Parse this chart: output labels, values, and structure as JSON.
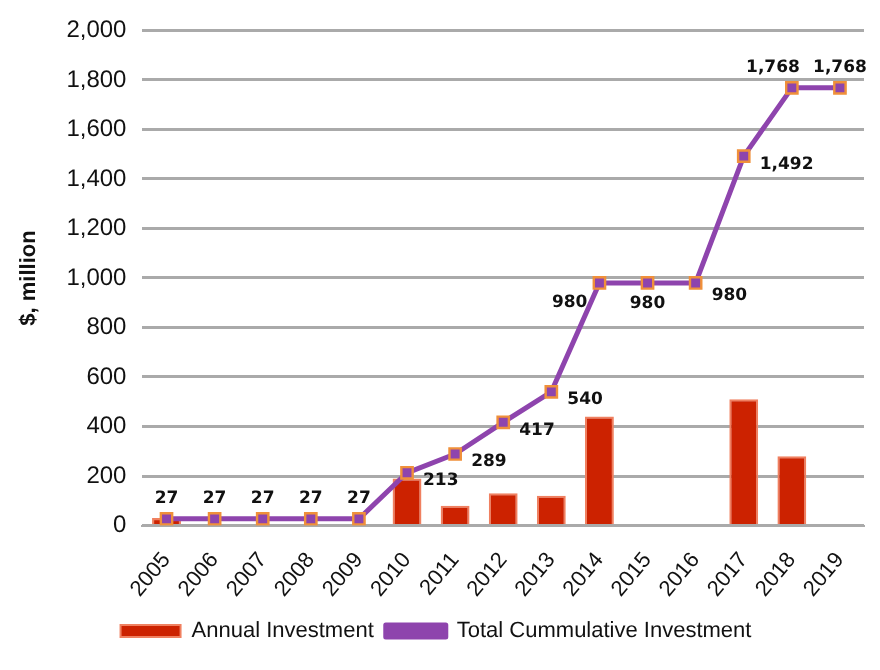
{
  "chart_data": {
    "type": "bar",
    "ylabel": "$, million",
    "categories": [
      "2005",
      "2006",
      "2007",
      "2008",
      "2009",
      "2010",
      "2011",
      "2012",
      "2013",
      "2014",
      "2015",
      "2016",
      "2017",
      "2018",
      "2019"
    ],
    "series": [
      {
        "name": "Annual Investment",
        "color": "#cc2200",
        "values": [
          30,
          0,
          0,
          0,
          0,
          190,
          80,
          130,
          120,
          440,
          0,
          0,
          510,
          280,
          0
        ]
      },
      {
        "name": "Total Cummulative Investment",
        "type": "line",
        "color": "#8e44ad",
        "marker": "square",
        "values": [
          27,
          27,
          27,
          27,
          27,
          213,
          289,
          417,
          540,
          980,
          980,
          980,
          1492,
          1768,
          1768
        ],
        "value_labels": [
          "27",
          "27",
          "27",
          "27",
          "27",
          "213",
          "289",
          "417",
          "540",
          "980",
          "980",
          "980",
          "1,492",
          "1,768",
          "1,768"
        ]
      }
    ],
    "ylim": [
      0,
      2000
    ],
    "yticks": [
      {
        "value": 0,
        "label": "0"
      },
      {
        "value": 200,
        "label": "200"
      },
      {
        "value": 400,
        "label": "400"
      },
      {
        "value": 600,
        "label": "600"
      },
      {
        "value": 800,
        "label": "800"
      },
      {
        "value": 1000,
        "label": "1,000"
      },
      {
        "value": 1200,
        "label": "1,200"
      },
      {
        "value": 1400,
        "label": "1,400"
      },
      {
        "value": 1600,
        "label": "1,600"
      },
      {
        "value": 1800,
        "label": "1,800"
      },
      {
        "value": 2000,
        "label": "2,000"
      }
    ],
    "grid": "y",
    "legend": "bottom"
  }
}
